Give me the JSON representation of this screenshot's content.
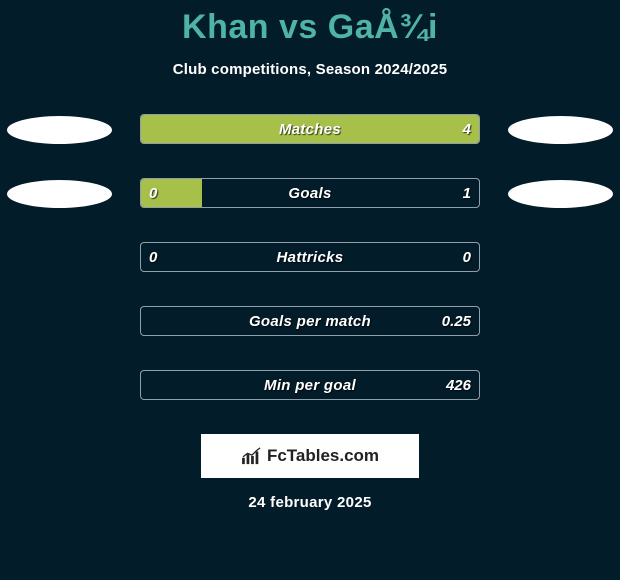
{
  "title": "Khan vs GaÅ¾i",
  "subtitle": "Club competitions, Season 2024/2025",
  "date": "24 february 2025",
  "logo_text": "FcTables.com",
  "colors": {
    "background": "#031c29",
    "title": "#4fb3a8",
    "bar_fill": "#a7c04a",
    "bar_border": "#8fa0ab",
    "text": "#ffffff",
    "ellipse": "#ffffff",
    "logo_bg": "#ffffff"
  },
  "rows": [
    {
      "label": "Matches",
      "left_value": "",
      "right_value": "4",
      "left_pct": 100,
      "right_pct": 0,
      "show_left_ellipse": true,
      "show_right_ellipse": true
    },
    {
      "label": "Goals",
      "left_value": "0",
      "right_value": "1",
      "left_pct": 18,
      "right_pct": 0,
      "show_left_ellipse": true,
      "show_right_ellipse": true
    },
    {
      "label": "Hattricks",
      "left_value": "0",
      "right_value": "0",
      "left_pct": 0,
      "right_pct": 0,
      "show_left_ellipse": false,
      "show_right_ellipse": false
    },
    {
      "label": "Goals per match",
      "left_value": "",
      "right_value": "0.25",
      "left_pct": 0,
      "right_pct": 0,
      "show_left_ellipse": false,
      "show_right_ellipse": false
    },
    {
      "label": "Min per goal",
      "left_value": "",
      "right_value": "426",
      "left_pct": 0,
      "right_pct": 0,
      "show_left_ellipse": false,
      "show_right_ellipse": false
    }
  ]
}
